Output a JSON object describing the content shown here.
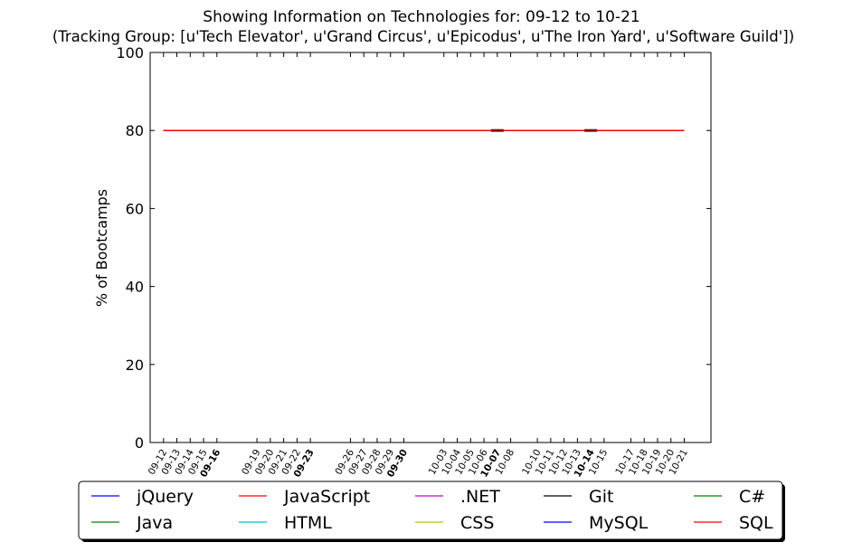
{
  "chart_data": {
    "type": "line",
    "title": "Showing Information on Technologies for: 09-12 to 10-21",
    "subtitle": "(Tracking Group: [u'Tech Elevator', u'Grand Circus', u'Epicodus', u'The Iron Yard', u'Software Guild'])",
    "ylabel": "% of Bootcamps",
    "xlabel": "",
    "ylim": [
      0,
      100
    ],
    "yticks": [
      0,
      20,
      40,
      60,
      80,
      100
    ],
    "grid": false,
    "legend_position": "bottom",
    "x_ticks": [
      {
        "day": 0,
        "label": "09-12"
      },
      {
        "day": 1,
        "label": "09-13"
      },
      {
        "day": 2,
        "label": "09-14"
      },
      {
        "day": 3,
        "label": "09-15"
      },
      {
        "day": 4,
        "label": "09-16"
      },
      {
        "day": 7,
        "label": "09-19"
      },
      {
        "day": 8,
        "label": "09-20"
      },
      {
        "day": 9,
        "label": "09-21"
      },
      {
        "day": 10,
        "label": "09-22"
      },
      {
        "day": 11,
        "label": "09-23"
      },
      {
        "day": 14,
        "label": "09-26"
      },
      {
        "day": 15,
        "label": "09-27"
      },
      {
        "day": 16,
        "label": "09-28"
      },
      {
        "day": 17,
        "label": "09-29"
      },
      {
        "day": 18,
        "label": "09-30"
      },
      {
        "day": 21,
        "label": "10-03"
      },
      {
        "day": 22,
        "label": "10-04"
      },
      {
        "day": 23,
        "label": "10-05"
      },
      {
        "day": 24,
        "label": "10-06"
      },
      {
        "day": 25,
        "label": "10-07"
      },
      {
        "day": 26,
        "label": "10-08"
      },
      {
        "day": 28,
        "label": "10-10"
      },
      {
        "day": 29,
        "label": "10-11"
      },
      {
        "day": 30,
        "label": "10-12"
      },
      {
        "day": 31,
        "label": "10-13"
      },
      {
        "day": 32,
        "label": "10-14"
      },
      {
        "day": 33,
        "label": "10-15"
      },
      {
        "day": 35,
        "label": "10-17"
      },
      {
        "day": 36,
        "label": "10-18"
      },
      {
        "day": 37,
        "label": "10-19"
      },
      {
        "day": 38,
        "label": "10-20"
      },
      {
        "day": 39,
        "label": "10-21"
      }
    ],
    "series": [
      {
        "name": "jQuery",
        "color": "#0000ff",
        "values": [
          80,
          80
        ]
      },
      {
        "name": "Java",
        "color": "#008000",
        "values": [
          80,
          80
        ]
      },
      {
        "name": "JavaScript",
        "color": "#ff0000",
        "values": [
          80,
          80
        ]
      },
      {
        "name": "HTML",
        "color": "#00bfbf",
        "values": [
          80,
          80
        ]
      },
      {
        "name": ".NET",
        "color": "#bf00bf",
        "values": [
          80,
          80
        ]
      },
      {
        "name": "CSS",
        "color": "#bfbf00",
        "values": [
          80,
          80
        ]
      },
      {
        "name": "Git",
        "color": "#000000",
        "values": [
          80,
          80
        ]
      },
      {
        "name": "MySQL",
        "color": "#0000ff",
        "values": [
          80,
          80
        ]
      },
      {
        "name": "C#",
        "color": "#008000",
        "values": [
          80,
          80
        ]
      },
      {
        "name": "SQL",
        "color": "#ff0000",
        "values": [
          80,
          80
        ]
      }
    ],
    "series_x_range": [
      "09-12",
      "10-21"
    ]
  }
}
